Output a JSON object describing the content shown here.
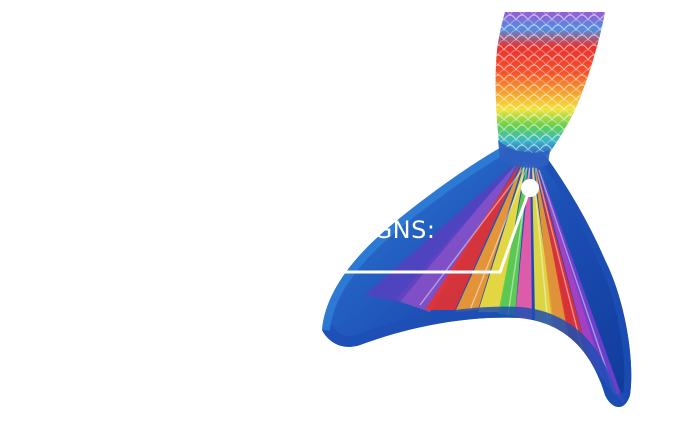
{
  "image": {
    "subject": "rainbow-mermaid-tail-fin"
  },
  "annotation": {
    "label": "IGNS:"
  },
  "palette": {
    "background": "#ffffff",
    "callout_line": "#ffffff",
    "scale_red": "#e8312f",
    "scale_orange": "#f59a2e",
    "scale_yellow": "#f3e33a",
    "scale_green": "#5fcf4e",
    "scale_purple": "#8a4fc8",
    "scale_blue": "#2f7fd8",
    "fin_dark_blue": "#1d4fb5"
  }
}
